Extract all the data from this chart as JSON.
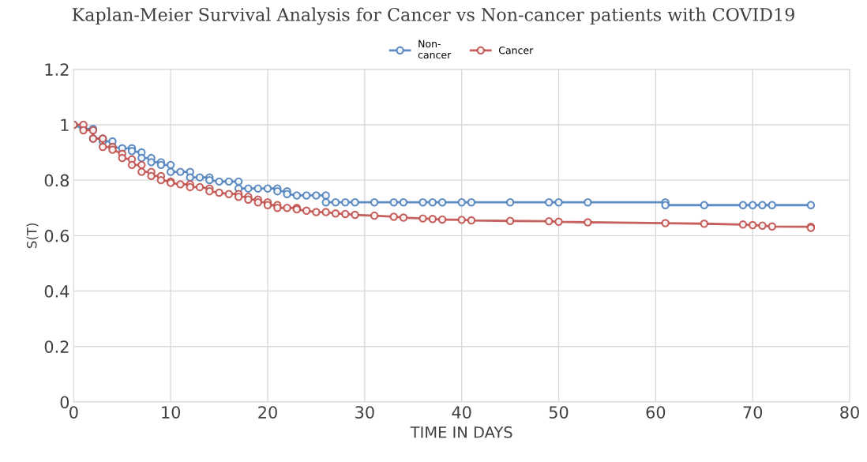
{
  "chart_data": {
    "type": "line",
    "title": "Kaplan-Meier Survival Analysis for Cancer vs Non-cancer patients with COVID19",
    "xlabel": "TIME IN DAYS",
    "ylabel": "S(T)",
    "xlim": [
      0,
      80
    ],
    "xticks": [
      0,
      10,
      20,
      30,
      40,
      50,
      60,
      70,
      80
    ],
    "ylim": [
      0,
      1.2
    ],
    "yticks": [
      0,
      0.2,
      0.4,
      0.6,
      0.8,
      1,
      1.2
    ],
    "grid": true,
    "legend": "top",
    "marker": "circle",
    "line_style": "solid",
    "series": [
      {
        "name": "Non-\ncancer",
        "color": "#4f81bd",
        "x": [
          0,
          1,
          2,
          2,
          3,
          3,
          4,
          4,
          5,
          6,
          6,
          7,
          7,
          8,
          8,
          9,
          9,
          10,
          10,
          11,
          12,
          12,
          13,
          14,
          14,
          15,
          16,
          17,
          17,
          18,
          19,
          20,
          21,
          21,
          22,
          22,
          23,
          24,
          25,
          26,
          26,
          27,
          28,
          29,
          31,
          33,
          34,
          36,
          37,
          38,
          40,
          41,
          45,
          49,
          50,
          53,
          61,
          61,
          65,
          69,
          70,
          71,
          72,
          76
        ],
        "values": [
          1,
          0.985,
          0.985,
          0.95,
          0.95,
          0.94,
          0.94,
          0.92,
          0.915,
          0.915,
          0.905,
          0.9,
          0.88,
          0.88,
          0.865,
          0.865,
          0.855,
          0.855,
          0.83,
          0.83,
          0.83,
          0.81,
          0.81,
          0.81,
          0.8,
          0.795,
          0.795,
          0.795,
          0.77,
          0.77,
          0.77,
          0.77,
          0.77,
          0.76,
          0.76,
          0.75,
          0.745,
          0.745,
          0.745,
          0.745,
          0.72,
          0.72,
          0.72,
          0.72,
          0.72,
          0.72,
          0.72,
          0.72,
          0.72,
          0.72,
          0.72,
          0.72,
          0.72,
          0.72,
          0.72,
          0.72,
          0.72,
          0.71,
          0.71,
          0.71,
          0.71,
          0.71,
          0.71,
          0.71
        ]
      },
      {
        "name": "Cancer",
        "color": "#c0504d",
        "x": [
          0,
          1,
          1,
          2,
          2,
          3,
          3,
          4,
          4,
          5,
          5,
          6,
          6,
          7,
          7,
          8,
          8,
          9,
          9,
          10,
          10,
          11,
          12,
          12,
          13,
          14,
          14,
          15,
          16,
          17,
          17,
          18,
          18,
          19,
          19,
          20,
          20,
          21,
          21,
          22,
          23,
          23,
          24,
          25,
          26,
          27,
          28,
          29,
          31,
          33,
          34,
          36,
          37,
          38,
          40,
          41,
          45,
          49,
          50,
          53,
          61,
          65,
          69,
          70,
          71,
          72,
          76,
          76
        ],
        "values": [
          1,
          1,
          0.98,
          0.98,
          0.95,
          0.95,
          0.92,
          0.92,
          0.91,
          0.895,
          0.88,
          0.875,
          0.855,
          0.855,
          0.83,
          0.83,
          0.815,
          0.815,
          0.8,
          0.795,
          0.79,
          0.785,
          0.785,
          0.775,
          0.775,
          0.77,
          0.76,
          0.755,
          0.75,
          0.75,
          0.74,
          0.74,
          0.73,
          0.73,
          0.72,
          0.72,
          0.71,
          0.71,
          0.7,
          0.7,
          0.7,
          0.695,
          0.69,
          0.685,
          0.685,
          0.68,
          0.678,
          0.675,
          0.672,
          0.668,
          0.665,
          0.662,
          0.66,
          0.658,
          0.657,
          0.655,
          0.653,
          0.652,
          0.65,
          0.648,
          0.645,
          0.643,
          0.64,
          0.638,
          0.636,
          0.633,
          0.632,
          0.628
        ]
      }
    ]
  }
}
